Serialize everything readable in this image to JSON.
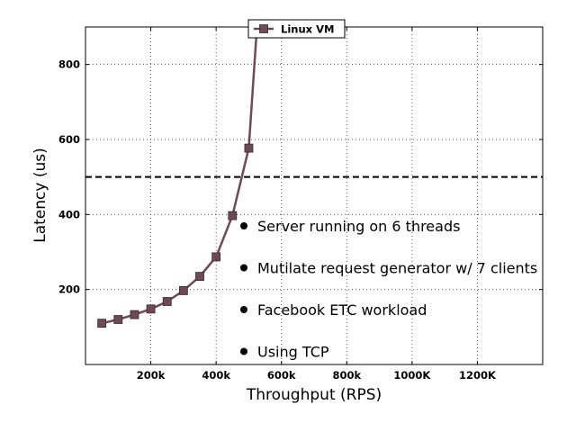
{
  "chart_data": {
    "type": "line",
    "title": "",
    "xlabel": "Throughput (RPS)",
    "ylabel": "Latency (us)",
    "xlim": [
      0,
      1400000
    ],
    "ylim": [
      0,
      900
    ],
    "x_ticks": [
      200000,
      400000,
      600000,
      800000,
      1000000,
      1200000
    ],
    "x_tick_labels": [
      "200k",
      "400k",
      "600k",
      "800k",
      "1000K",
      "1200K"
    ],
    "y_ticks": [
      200,
      400,
      600,
      800
    ],
    "y_tick_labels": [
      "200",
      "400",
      "600",
      "800"
    ],
    "grid": true,
    "grid_style": "dotted",
    "legend": "top-center",
    "series": [
      {
        "name": "Linux VM",
        "color": "#6e4a57",
        "marker": "square",
        "x": [
          50000,
          100000,
          150000,
          200000,
          250000,
          300000,
          350000,
          400000,
          450000,
          500000,
          525000
        ],
        "y": [
          110,
          120,
          133,
          148,
          168,
          197,
          235,
          287,
          397,
          577,
          900
        ]
      }
    ],
    "reference_lines": [
      {
        "axis": "y",
        "value": 500,
        "style": "dashed",
        "color": "#000000"
      }
    ],
    "annotations": [
      "Server running on 6 threads",
      "Mutilate request generator w/ 7 clients",
      "Facebook ETC workload",
      "Using TCP"
    ]
  }
}
